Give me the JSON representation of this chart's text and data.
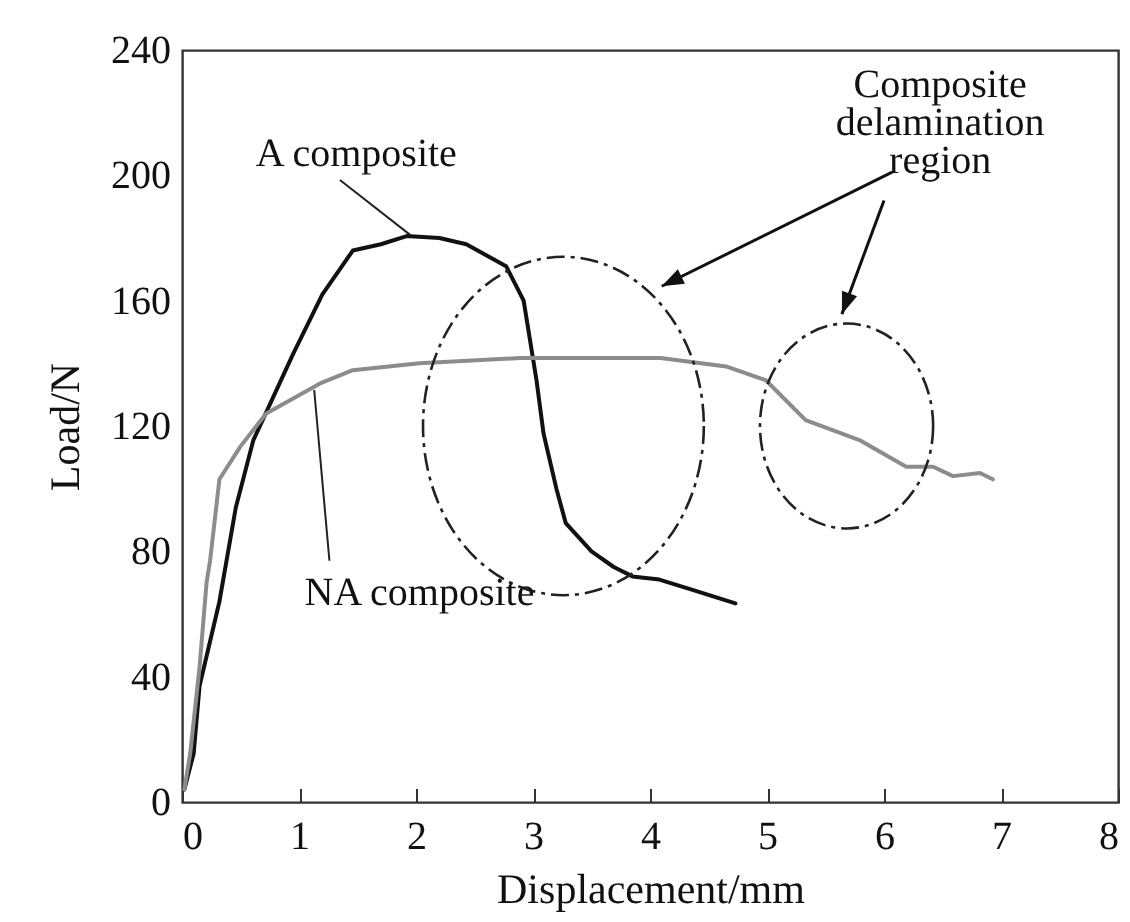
{
  "chart_data": {
    "type": "line",
    "xlabel": "Displacement/mm",
    "ylabel": "Load/N",
    "xlim": [
      0,
      8
    ],
    "ylim": [
      0,
      240
    ],
    "xticks": [
      0,
      1,
      2,
      3,
      4,
      5,
      6,
      7,
      8
    ],
    "yticks": [
      0,
      40,
      80,
      120,
      160,
      200,
      240
    ],
    "grid": false,
    "legend": false,
    "marker": "none",
    "line_style": "solid",
    "series": [
      {
        "color": "#111111",
        "x": [
          0.02,
          0.1,
          0.15,
          0.32,
          0.46,
          0.61,
          0.95,
          1.2,
          1.46,
          1.7,
          1.92,
          2.2,
          2.43,
          2.77,
          2.92,
          3.03,
          3.09,
          3.2,
          3.28,
          3.5,
          3.69,
          3.85,
          4.08,
          4.37,
          4.73
        ],
        "values": [
          4,
          15.5,
          37,
          64,
          94,
          115.5,
          143,
          162,
          176,
          178,
          180.6,
          180,
          178,
          171,
          160,
          134.6,
          117.6,
          100,
          89,
          80,
          75,
          72,
          71,
          67.6,
          63.4
        ]
      },
      {
        "color": "#8c8c8c",
        "x": [
          0.02,
          0.07,
          0.15,
          0.21,
          0.24,
          0.32,
          0.5,
          0.72,
          1.18,
          1.46,
          2.03,
          2.89,
          3.74,
          4.09,
          4.65,
          4.99,
          5.33,
          5.79,
          6.19,
          6.42,
          6.59,
          6.82,
          6.93
        ],
        "values": [
          4,
          15.5,
          43,
          70,
          77,
          103,
          113.5,
          124,
          133.6,
          137.8,
          140,
          141.7,
          141.7,
          141.7,
          139,
          134.6,
          121.9,
          115.5,
          107,
          107,
          104,
          105,
          103
        ]
      }
    ],
    "annotations": [
      {
        "text": "A composite",
        "x": 1.95,
        "y": 181
      },
      {
        "text": "NA composite",
        "x": 1.13,
        "y": 131.5
      },
      "Composite delamination region"
    ]
  }
}
